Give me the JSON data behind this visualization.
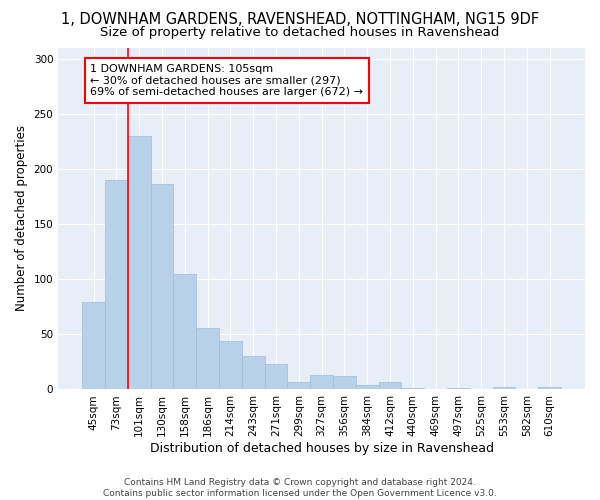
{
  "title": "1, DOWNHAM GARDENS, RAVENSHEAD, NOTTINGHAM, NG15 9DF",
  "subtitle": "Size of property relative to detached houses in Ravenshead",
  "xlabel": "Distribution of detached houses by size in Ravenshead",
  "ylabel": "Number of detached properties",
  "categories": [
    "45sqm",
    "73sqm",
    "101sqm",
    "130sqm",
    "158sqm",
    "186sqm",
    "214sqm",
    "243sqm",
    "271sqm",
    "299sqm",
    "327sqm",
    "356sqm",
    "384sqm",
    "412sqm",
    "440sqm",
    "469sqm",
    "497sqm",
    "525sqm",
    "553sqm",
    "582sqm",
    "610sqm"
  ],
  "values": [
    79,
    190,
    230,
    186,
    105,
    56,
    44,
    30,
    23,
    7,
    13,
    12,
    4,
    7,
    1,
    0,
    1,
    0,
    2,
    0,
    2
  ],
  "bar_color": "#b8d0e8",
  "bar_edge_color": "#a0bcd8",
  "vline_x_index": 2,
  "annotation_text": "1 DOWNHAM GARDENS: 105sqm\n← 30% of detached houses are smaller (297)\n69% of semi-detached houses are larger (672) →",
  "annotation_box_color": "white",
  "annotation_box_edge_color": "red",
  "vline_color": "red",
  "ylim": [
    0,
    310
  ],
  "yticks": [
    0,
    50,
    100,
    150,
    200,
    250,
    300
  ],
  "background_color": "#e8eef8",
  "footer_line1": "Contains HM Land Registry data © Crown copyright and database right 2024.",
  "footer_line2": "Contains public sector information licensed under the Open Government Licence v3.0.",
  "title_fontsize": 10.5,
  "subtitle_fontsize": 9.5,
  "xlabel_fontsize": 9,
  "ylabel_fontsize": 8.5,
  "tick_fontsize": 7.5,
  "annot_fontsize": 8,
  "footer_fontsize": 6.5
}
